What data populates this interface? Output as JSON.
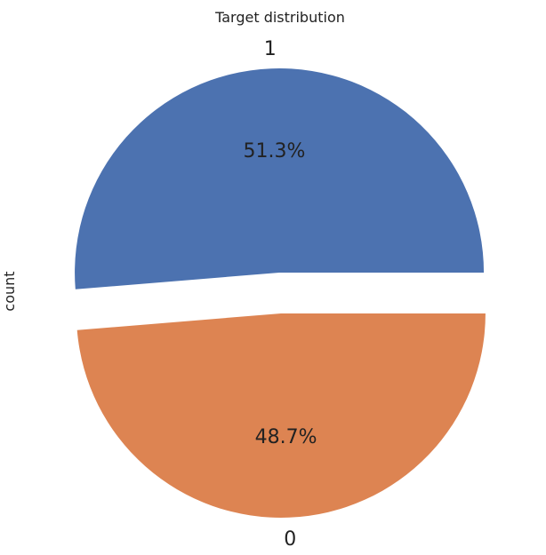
{
  "chart_data": {
    "type": "pie",
    "title": "Target distribution",
    "ylabel": "count",
    "slices": [
      {
        "label": "1",
        "percent": 51.3,
        "percent_label": "51.3%",
        "color": "#4c72b0",
        "explode": 0.1
      },
      {
        "label": "0",
        "percent": 48.7,
        "percent_label": "48.7%",
        "color": "#dd8452",
        "explode": 0.1
      }
    ],
    "start_angle_deg": 0,
    "direction": "counterclockwise"
  }
}
